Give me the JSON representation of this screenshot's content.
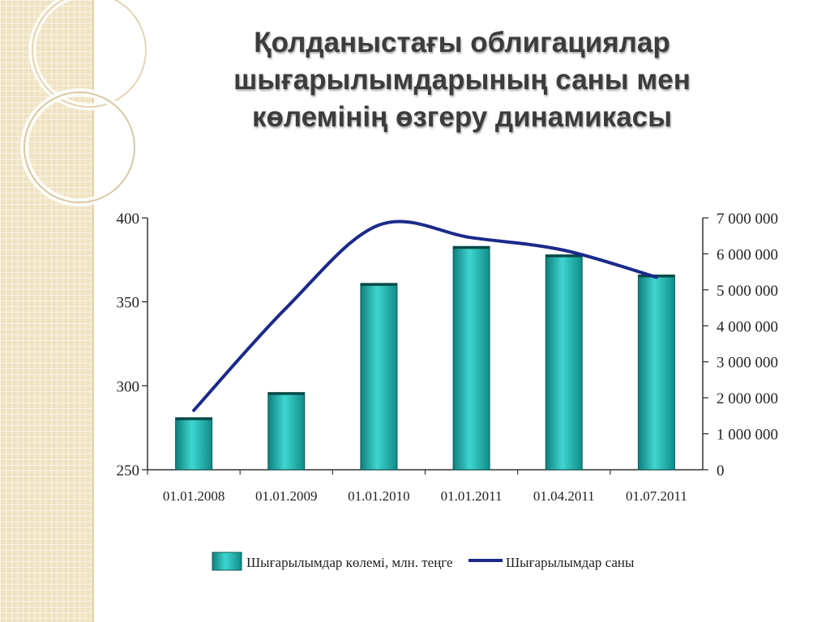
{
  "slide": {
    "title": "Қолданыстағы облигациялар\nшығарылымдарының саны мен\nкөлемінің өзгеру динамикасы"
  },
  "colors": {
    "bar": "#1fb5b0",
    "line": "#1b2a8a",
    "side_panel": "#efe3c2"
  },
  "chart_data": {
    "type": "bar",
    "categories": [
      "01.01.2008",
      "01.01.2009",
      "01.01.2010",
      "01.01.2011",
      "01.04.2011",
      "01.07.2011"
    ],
    "series": [
      {
        "name": "Шығарылымдар көлемі, млн. теңге",
        "type": "bar",
        "axis": "left",
        "values": [
          281,
          296,
          361,
          383,
          378,
          366
        ]
      },
      {
        "name": "Шығарылымдар саны",
        "type": "line",
        "axis": "right",
        "values": [
          1650000,
          4500000,
          6800000,
          6450000,
          6100000,
          5350000
        ]
      }
    ],
    "y_left": {
      "range": [
        250,
        400
      ],
      "ticks": [
        "250",
        "300",
        "350",
        "400"
      ]
    },
    "y_right": {
      "range": [
        0,
        7000000
      ],
      "ticks": [
        "0",
        "1 000 000",
        "2 000 000",
        "3 000 000",
        "4 000 000",
        "5 000 000",
        "6 000 000",
        "7 000 000"
      ]
    },
    "legend_position": "bottom",
    "grid": false
  }
}
